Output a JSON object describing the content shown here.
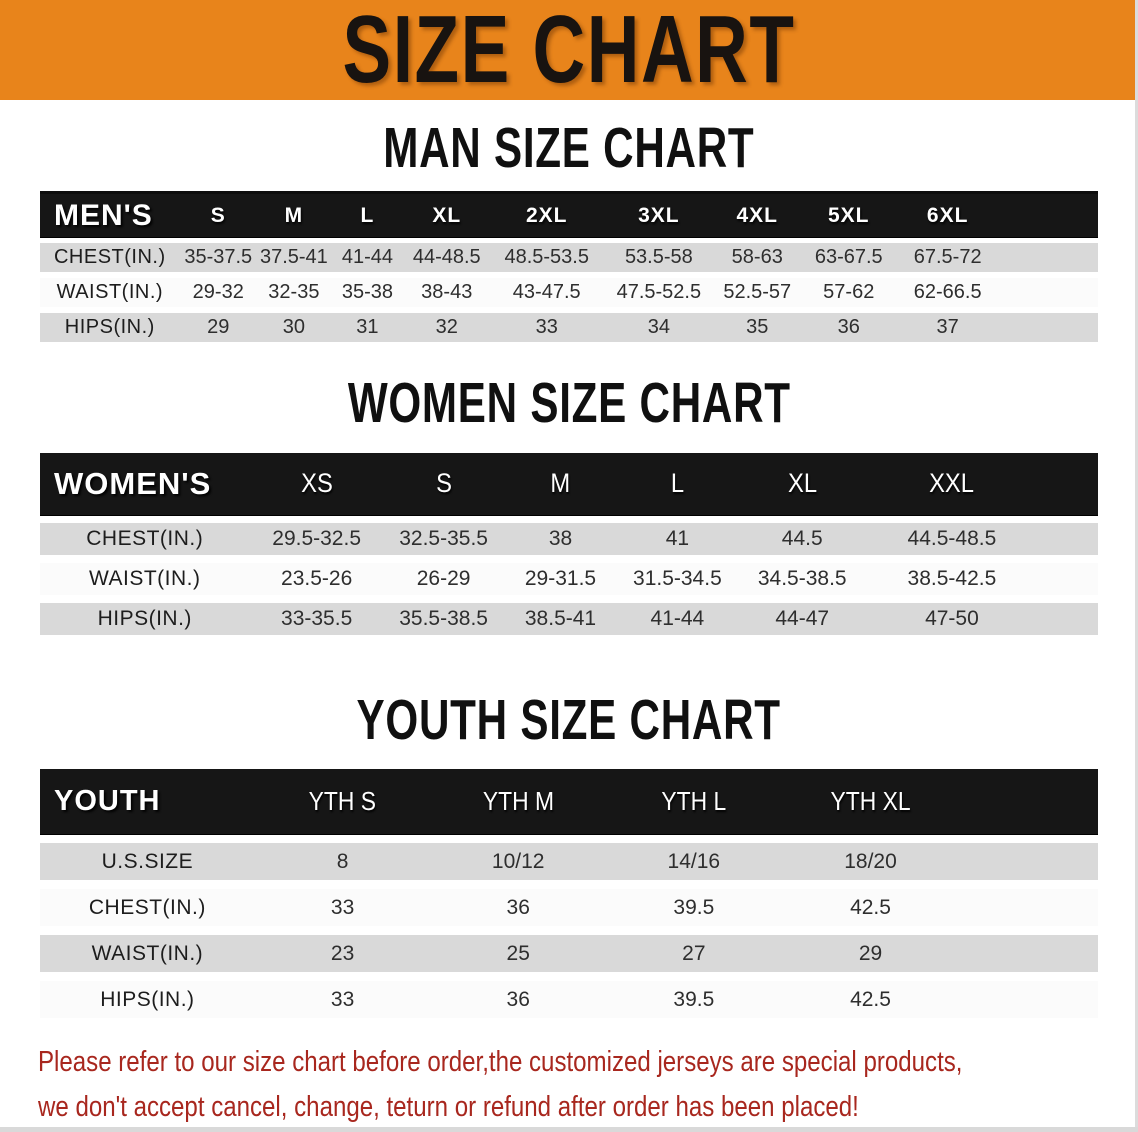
{
  "banner": {
    "title": "SIZE CHART"
  },
  "colors": {
    "banner_bg": "#E8841B",
    "table_header_bg": "#161616",
    "row_shaded_bg": "#D9D9D9",
    "row_plain_bg": "#FBFBFB",
    "notice_text": "#A8271E"
  },
  "sections": [
    {
      "heading": "MAN SIZE CHART",
      "header_label": "MEN'S",
      "columns": [
        "S",
        "M",
        "L",
        "XL",
        "2XL",
        "3XL",
        "4XL",
        "5XL",
        "6XL"
      ],
      "rows": [
        {
          "label": "CHEST(IN.)",
          "values": [
            "35-37.5",
            "37.5-41",
            "41-44",
            "44-48.5",
            "48.5-53.5",
            "53.5-58",
            "58-63",
            "63-67.5",
            "67.5-72"
          ]
        },
        {
          "label": "WAIST(IN.)",
          "values": [
            "29-32",
            "32-35",
            "35-38",
            "38-43",
            "43-47.5",
            "47.5-52.5",
            "52.5-57",
            "57-62",
            "62-66.5"
          ]
        },
        {
          "label": "HIPS(IN.)",
          "values": [
            "29",
            "30",
            "31",
            "32",
            "33",
            "34",
            "35",
            "36",
            "37"
          ]
        }
      ]
    },
    {
      "heading": "WOMEN SIZE CHART",
      "header_label": "WOMEN'S",
      "columns": [
        "XS",
        "S",
        "M",
        "L",
        "XL",
        "XXL"
      ],
      "rows": [
        {
          "label": "CHEST(IN.)",
          "values": [
            "29.5-32.5",
            "32.5-35.5",
            "38",
            "41",
            "44.5",
            "44.5-48.5"
          ]
        },
        {
          "label": "WAIST(IN.)",
          "values": [
            "23.5-26",
            "26-29",
            "29-31.5",
            "31.5-34.5",
            "34.5-38.5",
            "38.5-42.5"
          ]
        },
        {
          "label": "HIPS(IN.)",
          "values": [
            "33-35.5",
            "35.5-38.5",
            "38.5-41",
            "41-44",
            "44-47",
            "47-50"
          ]
        }
      ]
    },
    {
      "heading": "YOUTH SIZE CHART",
      "header_label": "YOUTH",
      "columns": [
        "YTH S",
        "YTH M",
        "YTH L",
        "YTH XL"
      ],
      "rows": [
        {
          "label": "U.S.SIZE",
          "values": [
            "8",
            "10/12",
            "14/16",
            "18/20"
          ]
        },
        {
          "label": "CHEST(IN.)",
          "values": [
            "33",
            "36",
            "39.5",
            "42.5"
          ]
        },
        {
          "label": "WAIST(IN.)",
          "values": [
            "23",
            "25",
            "27",
            "29"
          ]
        },
        {
          "label": "HIPS(IN.)",
          "values": [
            "33",
            "36",
            "39.5",
            "42.5"
          ]
        }
      ]
    }
  ],
  "footer": {
    "line1": "Please refer to our size chart before order,the customized jerseys are special products,",
    "line2": "we don't accept cancel, change, teturn or refund after order has been placed!"
  }
}
